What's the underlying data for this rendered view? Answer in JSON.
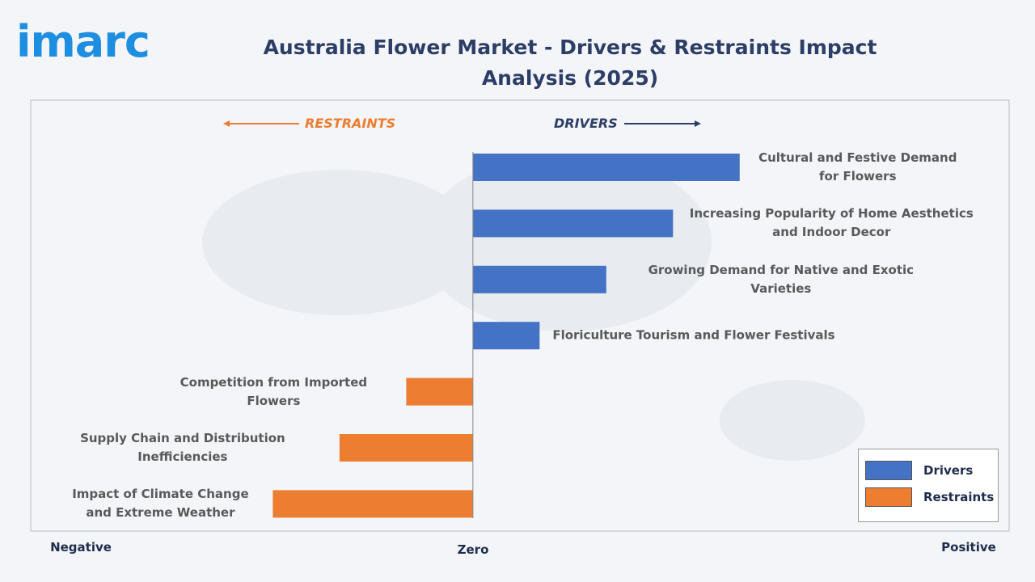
{
  "logo": "imarc",
  "chart_data": {
    "type": "bar",
    "orientation": "horizontal",
    "title": "Australia Flower Market - Drivers & Restraints Impact Analysis (2025)",
    "annotations": {
      "restraints": "RESTRAINTS",
      "drivers": "DRIVERS"
    },
    "x_labels": {
      "negative": "Negative",
      "zero": "Zero",
      "positive": "Positive"
    },
    "categories": [
      "Cultural and Festive Demand for Flowers",
      "Increasing Popularity of Home Aesthetics and Indoor Decor",
      "Growing Demand for Native and Exotic Varieties",
      "Floriculture Tourism and Flower Festivals",
      "Competition from Imported Flowers",
      "Supply Chain and Distribution Inefficiencies",
      "Impact of Climate Change and Extreme Weather"
    ],
    "series": [
      {
        "name": "Drivers",
        "color": "#4472c4",
        "values": [
          4,
          3,
          2,
          1,
          null,
          null,
          null
        ]
      },
      {
        "name": "Restraints",
        "color": "#ed7d31",
        "values": [
          null,
          null,
          null,
          null,
          -1,
          -2,
          -3
        ]
      }
    ],
    "xlim": [
      -6.63,
      8.04
    ],
    "legend": "bottom-right"
  }
}
